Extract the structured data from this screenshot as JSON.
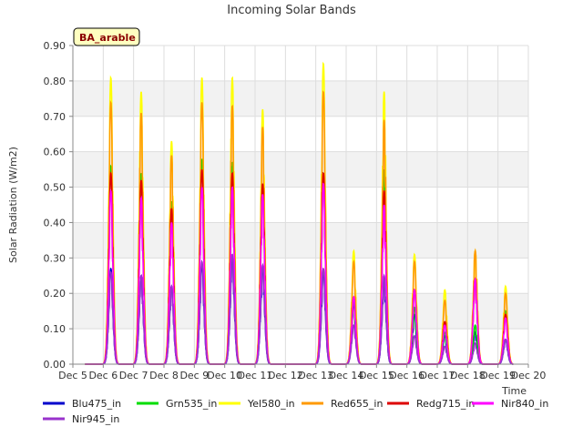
{
  "chart_data": {
    "type": "line",
    "title": "Incoming Solar Bands",
    "ylabel": "Solar Radiation (W/m2)",
    "xlabel": "Time",
    "site_label": "BA_arable",
    "ylim": [
      0,
      0.9
    ],
    "xlim": [
      5,
      20
    ],
    "y_ticks": [
      0.0,
      0.1,
      0.2,
      0.3,
      0.4,
      0.5,
      0.6,
      0.7,
      0.8,
      0.9
    ],
    "y_tick_labels": [
      "0.00",
      "0.10",
      "0.20",
      "0.30",
      "0.40",
      "0.50",
      "0.60",
      "0.70",
      "0.80",
      "0.90"
    ],
    "x_ticks": [
      5,
      6,
      7,
      8,
      9,
      10,
      11,
      12,
      13,
      14,
      15,
      16,
      17,
      18,
      19,
      20
    ],
    "x_tick_labels": [
      "Dec 5",
      "Dec 6",
      "Dec 7",
      "Dec 8",
      "Dec 9",
      "Dec 10",
      "Dec 11",
      "Dec 12",
      "Dec 13",
      "Dec 14",
      "Dec 15",
      "Dec 16",
      "Dec 17",
      "Dec 18",
      "Dec 19",
      "Dec 20"
    ],
    "grid": true,
    "legend_position": "bottom",
    "day_centers": [
      6.25,
      7.25,
      8.25,
      9.25,
      10.25,
      11.25,
      13.25,
      14.25,
      15.25,
      16.25,
      17.25,
      18.25,
      19.25
    ],
    "series": [
      {
        "name": "Blu475_in",
        "color": "#0000cc",
        "peaks": [
          0.27,
          0.25,
          0.22,
          0.28,
          0.3,
          0.27,
          0.26,
          0.17,
          0.24,
          0.14,
          0.08,
          0.09,
          0.07
        ]
      },
      {
        "name": "Grn535_in",
        "color": "#00dd00",
        "peaks": [
          0.56,
          0.54,
          0.46,
          0.58,
          0.57,
          0.51,
          0.54,
          0.18,
          0.55,
          0.16,
          0.09,
          0.11,
          0.15
        ]
      },
      {
        "name": "Yel580_in",
        "color": "#ffff00",
        "peaks": [
          0.81,
          0.77,
          0.63,
          0.81,
          0.81,
          0.72,
          0.85,
          0.32,
          0.77,
          0.31,
          0.21,
          0.32,
          0.22
        ]
      },
      {
        "name": "Red655_in",
        "color": "#ff9900",
        "peaks": [
          0.74,
          0.71,
          0.59,
          0.74,
          0.73,
          0.67,
          0.77,
          0.29,
          0.69,
          0.29,
          0.18,
          0.32,
          0.2
        ]
      },
      {
        "name": "Redg715_in",
        "color": "#dd0000",
        "peaks": [
          0.54,
          0.52,
          0.44,
          0.55,
          0.54,
          0.51,
          0.54,
          0.19,
          0.49,
          0.21,
          0.12,
          0.24,
          0.14
        ]
      },
      {
        "name": "Nir840_in",
        "color": "#ff00ff",
        "peaks": [
          0.49,
          0.47,
          0.4,
          0.5,
          0.5,
          0.48,
          0.51,
          0.19,
          0.45,
          0.21,
          0.11,
          0.24,
          0.13
        ]
      },
      {
        "name": "Nir945_in",
        "color": "#9933cc",
        "peaks": [
          0.26,
          0.25,
          0.22,
          0.29,
          0.31,
          0.28,
          0.27,
          0.11,
          0.25,
          0.08,
          0.05,
          0.06,
          0.07
        ]
      }
    ]
  }
}
